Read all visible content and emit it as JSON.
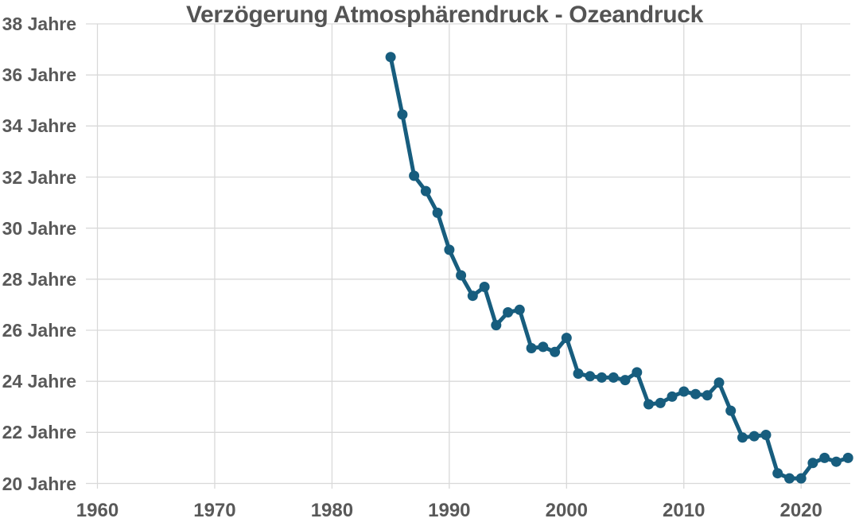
{
  "chart_data": {
    "type": "line",
    "title": "Verzögerung Atmosphärendruck - Ozeandruck",
    "xlabel": "",
    "ylabel": "",
    "x": [
      1985,
      1986,
      1987,
      1988,
      1989,
      1990,
      1991,
      1992,
      1993,
      1994,
      1995,
      1996,
      1997,
      1998,
      1999,
      2000,
      2001,
      2002,
      2003,
      2004,
      2005,
      2006,
      2007,
      2008,
      2009,
      2010,
      2011,
      2012,
      2013,
      2014,
      2015,
      2016,
      2017,
      2018,
      2019,
      2020,
      2021,
      2022,
      2023,
      2024
    ],
    "y": [
      36.7,
      34.45,
      32.05,
      31.45,
      30.6,
      29.15,
      28.15,
      27.35,
      27.7,
      26.2,
      26.7,
      26.8,
      25.3,
      25.35,
      25.15,
      25.7,
      24.3,
      24.2,
      24.15,
      24.15,
      24.05,
      24.35,
      23.1,
      23.15,
      23.4,
      23.6,
      23.5,
      23.45,
      23.95,
      22.85,
      21.8,
      21.85,
      21.9,
      20.4,
      20.2,
      20.2,
      20.8,
      21.0,
      20.85,
      21.0
    ],
    "series_name": "Verzögerung Atmosphärendruck - Ozeandruck",
    "xticks": {
      "values": [
        1960,
        1970,
        1980,
        1990,
        2000,
        2010,
        2020
      ],
      "labels": [
        "1960",
        "1970",
        "1980",
        "1990",
        "2000",
        "2010",
        "2020"
      ]
    },
    "yticks": {
      "values": [
        38,
        36,
        34,
        32,
        30,
        28,
        26,
        24,
        22,
        20
      ],
      "labels": [
        "38 Jahre",
        "36 Jahre",
        "34 Jahre",
        "32 Jahre",
        "30 Jahre",
        "28 Jahre",
        "26 Jahre",
        "24 Jahre",
        "22 Jahre",
        "20 Jahre"
      ]
    },
    "xlim": [
      1960,
      2024.2
    ],
    "ylim": [
      20,
      38
    ],
    "grid": true,
    "legend": false,
    "legend_position": "none",
    "colors": {
      "line": "#175d7e",
      "marker": "#175d7e",
      "grid": "#d9d9d9",
      "tick_text": "#595959",
      "title_text": "#545454",
      "background": "#ffffff"
    }
  }
}
